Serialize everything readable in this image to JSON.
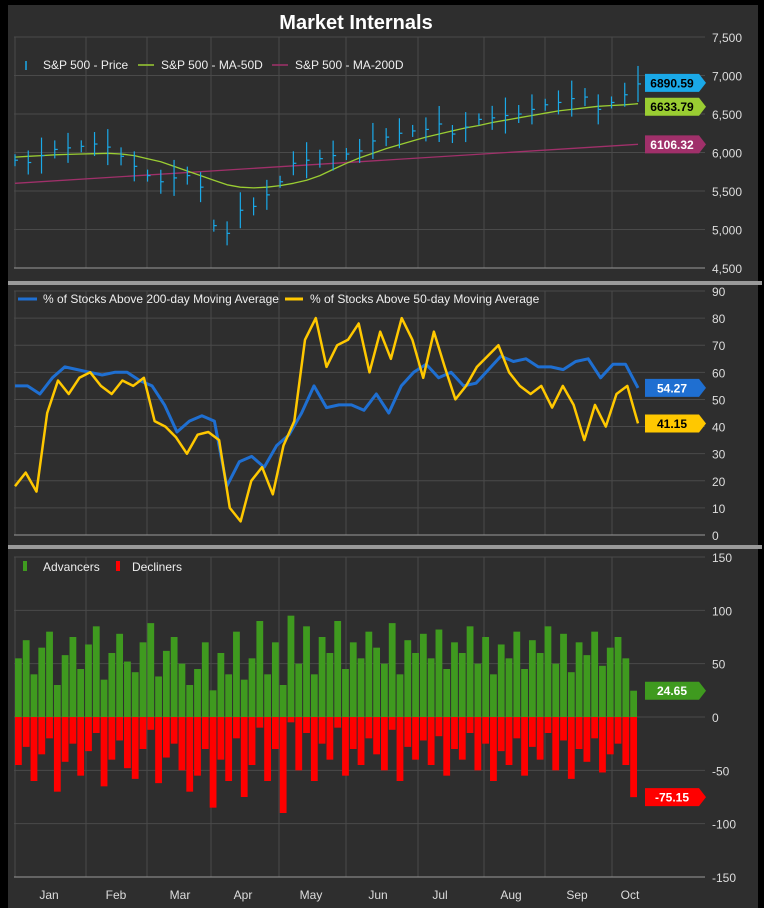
{
  "chart_data": [
    {
      "type": "line",
      "title": "Market Internals",
      "panel": "price",
      "legend": [
        "S&P 500 - Price",
        "S&P 500 - MA-50D",
        "S&P 500 - MA-200D"
      ],
      "colors": {
        "price": "#1aa9e8",
        "ma50": "#9acd32",
        "ma200": "#a0306a"
      },
      "yticks": [
        4500,
        5000,
        5500,
        6000,
        6500,
        7000,
        7500
      ],
      "ylim": [
        4500,
        7500
      ],
      "price": [
        5900,
        5870,
        5960,
        6040,
        6060,
        6080,
        6110,
        6070,
        5950,
        5820,
        5700,
        5620,
        5670,
        5700,
        5550,
        5050,
        4950,
        5250,
        5300,
        5450,
        5620,
        5860,
        5900,
        5920,
        5960,
        5980,
        6020,
        6150,
        6200,
        6250,
        6280,
        6300,
        6370,
        6240,
        6330,
        6430,
        6450,
        6480,
        6500,
        6560,
        6620,
        6650,
        6700,
        6720,
        6560,
        6650,
        6750,
        6890.59
      ],
      "ma50": [
        5940,
        5950,
        5960,
        5970,
        5975,
        5980,
        5985,
        5990,
        5980,
        5960,
        5920,
        5880,
        5820,
        5760,
        5700,
        5640,
        5580,
        5550,
        5540,
        5550,
        5570,
        5600,
        5640,
        5700,
        5780,
        5860,
        5930,
        5990,
        6050,
        6100,
        6150,
        6200,
        6240,
        6280,
        6320,
        6350,
        6390,
        6420,
        6450,
        6480,
        6510,
        6540,
        6560,
        6580,
        6600,
        6610,
        6620,
        6633.79
      ],
      "ma200": [
        5600,
        6106.32
      ],
      "last": {
        "price": "6890.59",
        "ma50": "6633.79",
        "ma200": "6106.32"
      }
    },
    {
      "type": "line",
      "panel": "breadth",
      "legend": [
        "% of Stocks Above 200-day Moving Average",
        "% of Stocks Above 50-day Moving Average"
      ],
      "colors": {
        "s200": "#1f6fd1",
        "s50": "#ffc800"
      },
      "yticks": [
        0,
        10,
        20,
        30,
        40,
        50,
        60,
        70,
        80,
        90
      ],
      "ylim": [
        0,
        90
      ],
      "s200": [
        55,
        55,
        52,
        58,
        62,
        61,
        60,
        59,
        60,
        60,
        57,
        55,
        48,
        38,
        42,
        44,
        42,
        18,
        27,
        29,
        25,
        33,
        37,
        45,
        55,
        47,
        48,
        48,
        46,
        52,
        45,
        55,
        60,
        63,
        58,
        60,
        55,
        56,
        61,
        66,
        64,
        65,
        62,
        62,
        61,
        64,
        65,
        58,
        63,
        63,
        54.27
      ],
      "s50": [
        18,
        23,
        16,
        45,
        57,
        52,
        58,
        60,
        55,
        52,
        57,
        55,
        58,
        42,
        40,
        36,
        30,
        37,
        38,
        35,
        10,
        5,
        20,
        25,
        15,
        33,
        42,
        72,
        80,
        62,
        70,
        72,
        78,
        60,
        75,
        65,
        80,
        72,
        58,
        75,
        62,
        50,
        55,
        62,
        66,
        70,
        60,
        55,
        52,
        55,
        47,
        55,
        48,
        35,
        48,
        40,
        52,
        55,
        41.15
      ],
      "last": {
        "s200": "54.27",
        "s50": "41.15"
      }
    },
    {
      "type": "bar",
      "panel": "advdec",
      "legend": [
        "Advancers",
        "Decliners"
      ],
      "colors": {
        "adv": "#3f9a1f",
        "dec": "#ff0000"
      },
      "yticks": [
        150,
        100,
        50,
        0,
        -50,
        -100,
        -150
      ],
      "ylim": [
        -150,
        150
      ],
      "advancers": [
        55,
        72,
        40,
        65,
        80,
        30,
        58,
        75,
        45,
        68,
        85,
        35,
        60,
        78,
        52,
        42,
        70,
        88,
        38,
        62,
        75,
        50,
        30,
        45,
        70,
        25,
        60,
        40,
        80,
        35,
        55,
        90,
        40,
        70,
        30,
        95,
        50,
        85,
        40,
        75,
        60,
        90,
        45,
        70,
        55,
        80,
        65,
        50,
        88,
        40,
        72,
        60,
        78,
        55,
        82,
        45,
        70,
        60,
        85,
        50,
        75,
        40,
        68,
        55,
        80,
        45,
        72,
        60,
        85,
        50,
        78,
        42,
        70,
        58,
        80,
        48,
        65,
        75,
        55,
        24.65
      ],
      "decliners": [
        -45,
        -28,
        -60,
        -35,
        -20,
        -70,
        -42,
        -25,
        -55,
        -32,
        -15,
        -65,
        -40,
        -22,
        -48,
        -58,
        -30,
        -12,
        -62,
        -38,
        -25,
        -50,
        -70,
        -55,
        -30,
        -85,
        -40,
        -60,
        -20,
        -75,
        -45,
        -10,
        -60,
        -30,
        -90,
        -5,
        -50,
        -15,
        -60,
        -25,
        -40,
        -10,
        -55,
        -30,
        -45,
        -20,
        -35,
        -50,
        -12,
        -60,
        -28,
        -40,
        -22,
        -45,
        -18,
        -55,
        -30,
        -40,
        -15,
        -50,
        -25,
        -60,
        -32,
        -45,
        -20,
        -55,
        -28,
        -40,
        -15,
        -50,
        -22,
        -58,
        -30,
        -42,
        -20,
        -52,
        -35,
        -25,
        -45,
        -75.15
      ],
      "last": {
        "adv": "24.65",
        "dec": "-75.15"
      },
      "months": [
        "Jan",
        "Feb",
        "Mar",
        "Apr",
        "May",
        "Jun",
        "Jul",
        "Aug",
        "Sep",
        "Oct"
      ]
    }
  ]
}
